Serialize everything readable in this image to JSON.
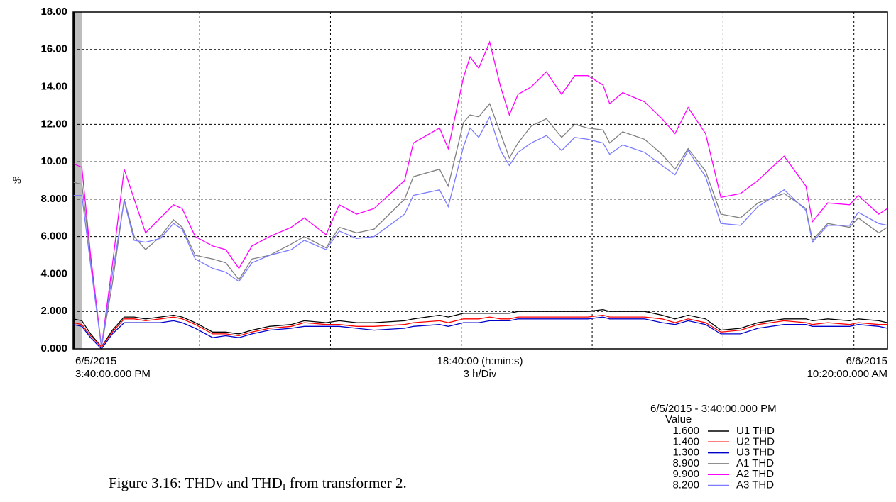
{
  "chart_data": {
    "type": "line",
    "y_label": "%",
    "x_labels": {
      "left_date": "6/5/2015",
      "left_time": "3:40:00.000 PM",
      "center_span": "18:40:00 (h:min:s)",
      "center_div": "3 h/Div",
      "right_date": "6/6/2015",
      "right_time": "10:20:00.000 AM"
    },
    "xlim": [
      0,
      18.67
    ],
    "xgrid": [
      2.9,
      5.9,
      8.9,
      11.9,
      14.9,
      17.9
    ],
    "ylim": [
      0,
      18
    ],
    "yticks": [
      {
        "value": 18,
        "label": "18.00"
      },
      {
        "value": 16,
        "label": "16.00"
      },
      {
        "value": 14,
        "label": "14.00"
      },
      {
        "value": 12,
        "label": "12.00"
      },
      {
        "value": 10,
        "label": "10.00"
      },
      {
        "value": 8,
        "label": "8.000"
      },
      {
        "value": 6,
        "label": "6.000"
      },
      {
        "value": 4,
        "label": "4.000"
      },
      {
        "value": 2,
        "label": "2.000"
      },
      {
        "value": 0,
        "label": "0.000"
      }
    ],
    "grid": true,
    "x": [
      0,
      0.2,
      0.4,
      0.65,
      0.9,
      1.17,
      1.4,
      1.66,
      2.0,
      2.3,
      2.5,
      2.8,
      3.2,
      3.5,
      3.8,
      4.1,
      4.5,
      5.0,
      5.3,
      5.8,
      6.1,
      6.5,
      6.9,
      7.6,
      7.8,
      8.4,
      8.6,
      8.95,
      9.1,
      9.3,
      9.55,
      9.8,
      10.0,
      10.2,
      10.5,
      10.85,
      11.2,
      11.5,
      11.8,
      12.15,
      12.3,
      12.6,
      13.1,
      13.5,
      13.8,
      14.1,
      14.5,
      14.85,
      15.3,
      15.7,
      16.3,
      16.8,
      16.95,
      17.3,
      17.8,
      18.0,
      18.47,
      18.67
    ],
    "series": [
      {
        "name": "U1 THD",
        "color": "#000000",
        "legend_value": "1.600",
        "values": [
          1.6,
          1.5,
          0.8,
          0.1,
          1.0,
          1.7,
          1.7,
          1.6,
          1.7,
          1.8,
          1.7,
          1.4,
          0.9,
          0.9,
          0.8,
          1.0,
          1.2,
          1.3,
          1.5,
          1.4,
          1.5,
          1.4,
          1.4,
          1.5,
          1.6,
          1.8,
          1.7,
          1.9,
          1.9,
          1.9,
          1.9,
          1.9,
          1.9,
          2.0,
          2.0,
          2.0,
          2.0,
          2.0,
          2.0,
          2.1,
          2.0,
          2.0,
          2.0,
          1.8,
          1.6,
          1.8,
          1.6,
          1.0,
          1.1,
          1.4,
          1.6,
          1.6,
          1.5,
          1.6,
          1.5,
          1.6,
          1.5,
          1.4
        ]
      },
      {
        "name": "U2 THD",
        "color": "#ff0000",
        "legend_value": "1.400",
        "values": [
          1.4,
          1.3,
          0.7,
          0.1,
          0.9,
          1.6,
          1.6,
          1.5,
          1.6,
          1.7,
          1.6,
          1.3,
          0.8,
          0.8,
          0.7,
          0.9,
          1.1,
          1.2,
          1.4,
          1.3,
          1.3,
          1.2,
          1.2,
          1.3,
          1.4,
          1.5,
          1.4,
          1.6,
          1.6,
          1.6,
          1.7,
          1.6,
          1.6,
          1.7,
          1.7,
          1.7,
          1.7,
          1.7,
          1.7,
          1.8,
          1.7,
          1.7,
          1.7,
          1.6,
          1.4,
          1.6,
          1.4,
          0.9,
          1.0,
          1.3,
          1.5,
          1.4,
          1.3,
          1.4,
          1.3,
          1.4,
          1.3,
          1.3
        ]
      },
      {
        "name": "U3 THD",
        "color": "#0000cc",
        "legend_value": "1.300",
        "values": [
          1.3,
          1.2,
          0.6,
          0.0,
          0.8,
          1.4,
          1.4,
          1.4,
          1.4,
          1.5,
          1.4,
          1.1,
          0.6,
          0.7,
          0.6,
          0.8,
          1.0,
          1.1,
          1.2,
          1.2,
          1.2,
          1.1,
          1.0,
          1.1,
          1.2,
          1.3,
          1.2,
          1.4,
          1.4,
          1.4,
          1.5,
          1.5,
          1.5,
          1.6,
          1.6,
          1.6,
          1.6,
          1.6,
          1.6,
          1.7,
          1.6,
          1.6,
          1.6,
          1.4,
          1.3,
          1.5,
          1.3,
          0.8,
          0.8,
          1.1,
          1.3,
          1.3,
          1.2,
          1.2,
          1.2,
          1.3,
          1.2,
          1.1
        ]
      },
      {
        "name": "A1 THD",
        "color": "#808080",
        "legend_value": "8.900",
        "values": [
          8.9,
          8.8,
          4.9,
          0.1,
          3.5,
          8.0,
          6.0,
          5.3,
          6.0,
          6.9,
          6.5,
          5.0,
          4.8,
          4.6,
          3.7,
          4.8,
          5.0,
          5.6,
          6.0,
          5.4,
          6.5,
          6.2,
          6.4,
          8.0,
          9.2,
          9.6,
          8.7,
          12.1,
          12.5,
          12.4,
          13.1,
          11.5,
          10.2,
          11.0,
          11.9,
          12.3,
          11.3,
          12.0,
          11.8,
          11.7,
          11.0,
          11.6,
          11.2,
          10.4,
          9.6,
          10.7,
          9.5,
          7.2,
          7.0,
          7.8,
          8.3,
          7.5,
          5.8,
          6.7,
          6.5,
          7.0,
          6.2,
          6.5
        ]
      },
      {
        "name": "A2 THD",
        "color": "#ff00ff",
        "legend_value": "9.900",
        "values": [
          9.9,
          9.7,
          5.0,
          0.1,
          4.5,
          9.6,
          8.0,
          6.2,
          7.0,
          7.7,
          7.5,
          6.0,
          5.5,
          5.3,
          4.3,
          5.5,
          6.0,
          6.5,
          7.0,
          6.1,
          7.7,
          7.2,
          7.5,
          9.0,
          11.0,
          11.8,
          10.7,
          14.5,
          15.6,
          15.0,
          16.4,
          14.0,
          12.5,
          13.6,
          14.0,
          14.8,
          13.6,
          14.6,
          14.6,
          14.1,
          13.1,
          13.7,
          13.2,
          12.3,
          11.5,
          12.9,
          11.5,
          8.1,
          8.3,
          9.0,
          10.3,
          8.7,
          6.8,
          7.8,
          7.7,
          8.2,
          7.2,
          7.5
        ]
      },
      {
        "name": "A3 THD",
        "color": "#7b7bff",
        "legend_value": "8.200",
        "values": [
          8.2,
          8.2,
          4.5,
          0.1,
          4.0,
          7.9,
          5.8,
          5.7,
          5.9,
          6.7,
          6.4,
          4.8,
          4.3,
          4.1,
          3.6,
          4.6,
          5.0,
          5.3,
          5.8,
          5.3,
          6.3,
          5.9,
          6.0,
          7.2,
          8.2,
          8.5,
          7.6,
          10.8,
          11.8,
          11.3,
          12.4,
          10.6,
          9.8,
          10.5,
          11.0,
          11.4,
          10.6,
          11.3,
          11.2,
          11.0,
          10.4,
          10.9,
          10.5,
          9.8,
          9.3,
          10.6,
          9.2,
          6.7,
          6.6,
          7.6,
          8.5,
          7.4,
          5.7,
          6.6,
          6.6,
          7.3,
          6.7,
          6.6
        ]
      }
    ],
    "legend": {
      "title": "6/5/2015 - 3:40:00.000 PM",
      "header": "Value"
    },
    "caption": {
      "text": "Figure 3.16: THDv and THD",
      "subscript": "I",
      "tail": " from transformer 2."
    }
  }
}
